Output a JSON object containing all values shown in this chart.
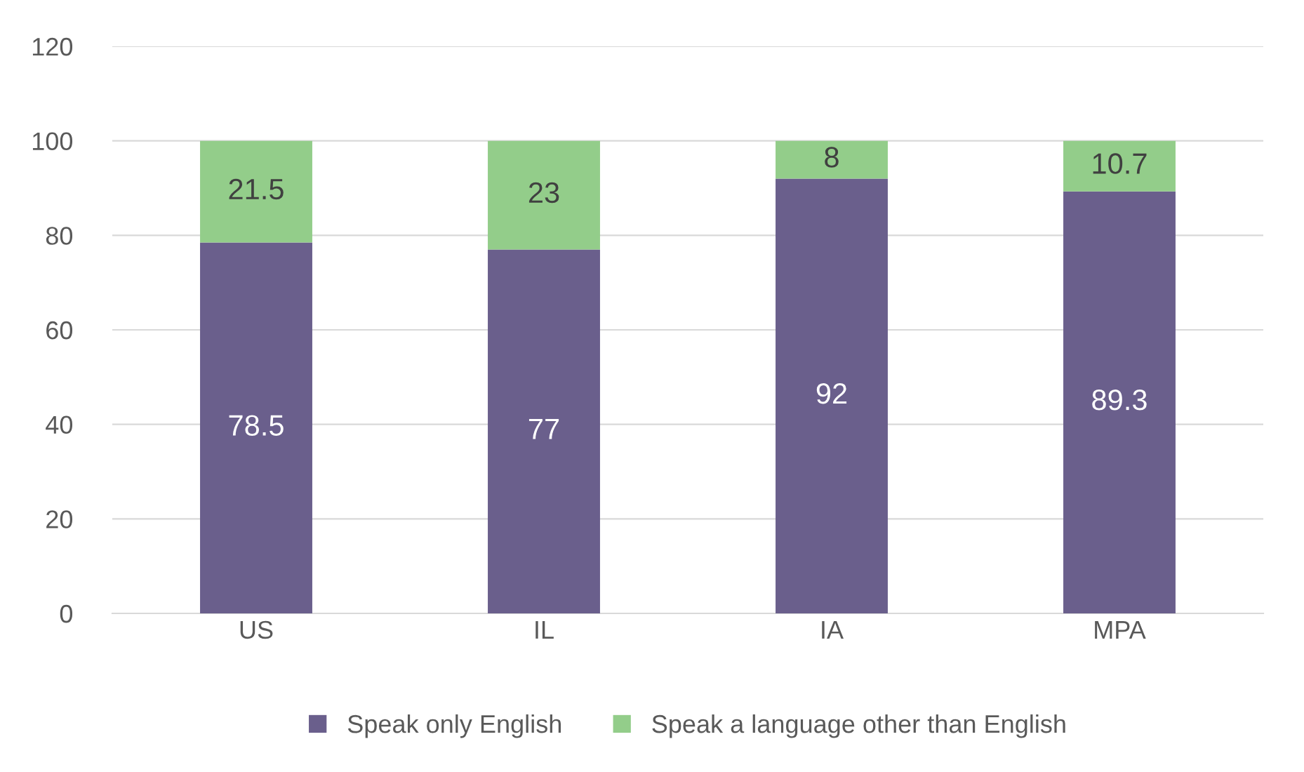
{
  "chart_data": {
    "type": "bar",
    "stacked": true,
    "categories": [
      "US",
      "IL",
      "IA",
      "MPA"
    ],
    "series": [
      {
        "name": "Speak only English",
        "color": "#6a5f8c",
        "values": [
          78.5,
          77,
          92,
          89.3
        ]
      },
      {
        "name": "Speak a language other than English",
        "color": "#93cd8a",
        "values": [
          21.5,
          23,
          8,
          10.7
        ]
      }
    ],
    "ylim": [
      0,
      120
    ],
    "yticks": [
      0,
      20,
      40,
      60,
      80,
      100,
      120
    ],
    "grid": "y",
    "legend": "bottom",
    "data_labels": true
  }
}
